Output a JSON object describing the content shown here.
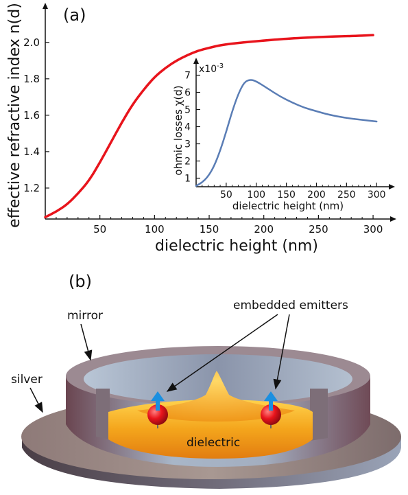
{
  "panels": {
    "a_label": "(a)",
    "b_label": "(b)"
  },
  "chart_data": [
    {
      "type": "line",
      "xlabel": "dielectric height (nm)",
      "ylabel": "effective refractive index n(d)",
      "xlim": [
        0,
        310
      ],
      "ylim": [
        1.03,
        2.15
      ],
      "xticks": [
        50,
        100,
        150,
        200,
        250,
        300
      ],
      "yticks": [
        1.2,
        1.4,
        1.6,
        1.8,
        2.0
      ],
      "grid": false,
      "series": [
        {
          "color": "#e8141c",
          "x": [
            0,
            10,
            20,
            30,
            40,
            50,
            60,
            70,
            80,
            90,
            100,
            110,
            120,
            130,
            140,
            150,
            160,
            180,
            200,
            220,
            250,
            280,
            300
          ],
          "y": [
            1.04,
            1.07,
            1.11,
            1.17,
            1.24,
            1.34,
            1.45,
            1.56,
            1.66,
            1.74,
            1.81,
            1.86,
            1.9,
            1.93,
            1.955,
            1.97,
            1.985,
            2.0,
            2.01,
            2.02,
            2.03,
            2.035,
            2.04
          ]
        }
      ]
    },
    {
      "type": "line",
      "inset": true,
      "xlabel": "dielectric height (nm)",
      "ylabel": "ohmic losses χ(d)",
      "y_multiplier": "x10",
      "y_multiplier_exp": "-3",
      "xlim": [
        0,
        310
      ],
      "ylim": [
        0.5,
        7.3
      ],
      "xticks": [
        50,
        100,
        150,
        200,
        250,
        300
      ],
      "yticks": [
        1,
        2,
        3,
        4,
        5,
        6,
        7
      ],
      "grid": false,
      "series": [
        {
          "color": "#5a7db5",
          "x": [
            0,
            10,
            20,
            30,
            40,
            50,
            60,
            70,
            80,
            90,
            100,
            120,
            140,
            160,
            180,
            200,
            220,
            250,
            280,
            300
          ],
          "y": [
            0.55,
            0.75,
            1.1,
            1.7,
            2.6,
            3.7,
            4.9,
            5.9,
            6.6,
            6.75,
            6.65,
            6.2,
            5.75,
            5.4,
            5.1,
            4.9,
            4.7,
            4.5,
            4.38,
            4.3
          ]
        }
      ]
    }
  ],
  "diagram": {
    "labels": {
      "mirror": "mirror",
      "silver": "silver",
      "embedded_emitters": "embedded emitters",
      "dielectric": "dielectric"
    },
    "colors": {
      "mirror_outer": "#7a5560",
      "mirror_inner": "#9fb0c4",
      "silver": "#8a7d7a",
      "dielectric": "#f2a317",
      "emitter_sphere": "#e8141c",
      "dipole_arrow": "#1a8fe0"
    }
  }
}
